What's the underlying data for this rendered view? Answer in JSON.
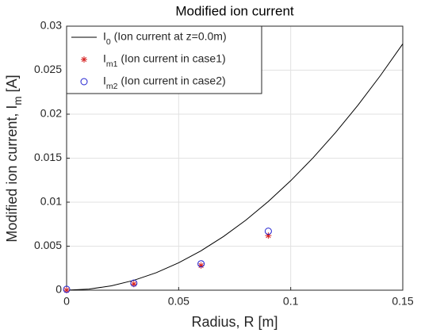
{
  "chart_data": {
    "type": "line",
    "title": "Modified ion current",
    "xlabel": "Radius, R [m]",
    "ylabel": "Modified ion current, Im [A]",
    "xlim": [
      0,
      0.15
    ],
    "xticks": [
      0,
      0.05,
      0.1,
      0.15
    ],
    "ylim": [
      0,
      0.03
    ],
    "yticks": [
      0,
      0.005,
      0.01,
      0.015,
      0.02,
      0.025,
      0.03
    ],
    "grid": true,
    "legend_position": "northwest",
    "series": [
      {
        "name": "I0 (Ion current at z=0.0m)",
        "color": "#000000",
        "marker": "none",
        "x": [
          0,
          0.01,
          0.02,
          0.03,
          0.04,
          0.05,
          0.06,
          0.07,
          0.08,
          0.09,
          0.1,
          0.11,
          0.12,
          0.13,
          0.14,
          0.15
        ],
        "values": [
          0,
          0.000124,
          0.000498,
          0.00112,
          0.00199,
          0.00311,
          0.00448,
          0.0061,
          0.00796,
          0.01008,
          0.01244,
          0.01505,
          0.01791,
          0.02102,
          0.02438,
          0.02799
        ]
      },
      {
        "name": "Im1 (Ion current in case1)",
        "color": "#d62020",
        "marker": "star",
        "x": [
          0,
          0.03,
          0.06,
          0.09
        ],
        "values": [
          0,
          0.0007,
          0.0028,
          0.0062
        ]
      },
      {
        "name": "Im2 (Ion current in case2)",
        "color": "#2020d0",
        "marker": "circle",
        "x": [
          0,
          0.03,
          0.06,
          0.09
        ],
        "values": [
          0.0001,
          0.0008,
          0.003,
          0.0067
        ]
      }
    ]
  }
}
